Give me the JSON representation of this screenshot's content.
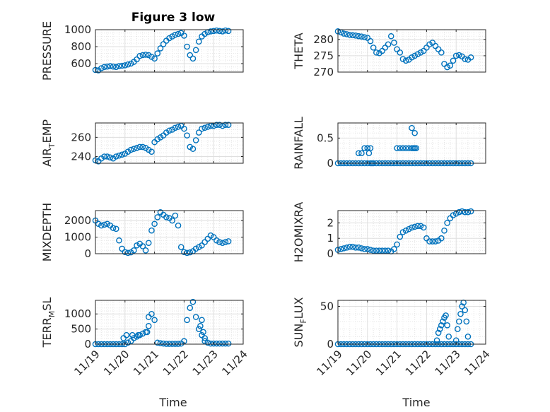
{
  "figure_title": "Figure 3 low",
  "colors": {
    "marker": "#0072BD",
    "axis": "#262626",
    "grid": "#dfdfdf"
  },
  "chart_data": [
    {
      "type": "scatter",
      "ylabel": "PRESSURE",
      "ylim": [
        500,
        1000
      ],
      "yticks": [
        600,
        800,
        1000
      ],
      "xlim": [
        0,
        5
      ],
      "xticks": [
        "11/19",
        "11/20",
        "11/21",
        "11/22",
        "11/23",
        "11/24"
      ],
      "x": [
        0.0,
        0.1,
        0.2,
        0.3,
        0.4,
        0.5,
        0.6,
        0.7,
        0.8,
        0.9,
        1.0,
        1.1,
        1.2,
        1.3,
        1.4,
        1.5,
        1.6,
        1.7,
        1.8,
        1.9,
        2.0,
        2.1,
        2.2,
        2.3,
        2.4,
        2.5,
        2.6,
        2.7,
        2.8,
        2.9,
        3.0,
        3.1,
        3.2,
        3.3,
        3.4,
        3.5,
        3.6,
        3.7,
        3.8,
        3.9,
        4.0,
        4.1,
        4.2,
        4.3,
        4.4,
        4.5
      ],
      "y": [
        525,
        520,
        545,
        560,
        565,
        570,
        565,
        560,
        570,
        575,
        580,
        590,
        600,
        620,
        650,
        690,
        700,
        705,
        700,
        680,
        660,
        720,
        780,
        830,
        870,
        900,
        920,
        940,
        950,
        960,
        930,
        800,
        700,
        660,
        760,
        860,
        920,
        950,
        970,
        980,
        985,
        990,
        985,
        980,
        990,
        985
      ]
    },
    {
      "type": "scatter",
      "ylabel": "THETA",
      "ylim": [
        270,
        283
      ],
      "yticks": [
        270,
        275,
        280
      ],
      "xlim": [
        0,
        5
      ],
      "xticks": [
        "11/19",
        "11/20",
        "11/21",
        "11/22",
        "11/23",
        "11/24"
      ],
      "x": [
        0.0,
        0.1,
        0.2,
        0.3,
        0.4,
        0.5,
        0.6,
        0.7,
        0.8,
        0.9,
        1.0,
        1.1,
        1.2,
        1.3,
        1.4,
        1.5,
        1.6,
        1.7,
        1.8,
        1.9,
        2.0,
        2.1,
        2.2,
        2.3,
        2.4,
        2.5,
        2.6,
        2.7,
        2.8,
        2.9,
        3.0,
        3.1,
        3.2,
        3.3,
        3.4,
        3.5,
        3.6,
        3.7,
        3.8,
        3.9,
        4.0,
        4.1,
        4.2,
        4.3,
        4.4,
        4.5
      ],
      "y": [
        282.5,
        282.2,
        281.8,
        281.6,
        281.4,
        281.3,
        281.2,
        281.0,
        280.9,
        280.7,
        280.5,
        279.5,
        277.5,
        276.0,
        275.8,
        276.5,
        277.5,
        278.5,
        281.0,
        279.0,
        277.0,
        276.0,
        274.0,
        273.5,
        273.8,
        274.5,
        275.0,
        275.5,
        276.0,
        276.5,
        277.5,
        278.5,
        279.0,
        278.0,
        277.0,
        276.0,
        272.5,
        271.5,
        272.0,
        273.5,
        275.0,
        275.2,
        274.8,
        274.0,
        273.8,
        274.5
      ]
    },
    {
      "type": "scatter",
      "ylabel": "AIR_TEMP",
      "ylim": [
        233,
        275
      ],
      "yticks": [
        240,
        260
      ],
      "xlim": [
        0,
        5
      ],
      "xticks": [
        "11/19",
        "11/20",
        "11/21",
        "11/22",
        "11/23",
        "11/24"
      ],
      "x": [
        0.0,
        0.1,
        0.2,
        0.3,
        0.4,
        0.5,
        0.6,
        0.7,
        0.8,
        0.9,
        1.0,
        1.1,
        1.2,
        1.3,
        1.4,
        1.5,
        1.6,
        1.7,
        1.8,
        1.9,
        2.0,
        2.1,
        2.2,
        2.3,
        2.4,
        2.5,
        2.6,
        2.7,
        2.8,
        2.9,
        3.0,
        3.1,
        3.2,
        3.3,
        3.4,
        3.5,
        3.6,
        3.7,
        3.8,
        3.9,
        4.0,
        4.1,
        4.2,
        4.3,
        4.4,
        4.5
      ],
      "y": [
        236,
        235,
        238,
        240,
        240,
        239,
        238,
        240,
        241,
        242,
        243,
        245,
        247,
        248,
        249,
        250,
        250,
        249,
        247,
        245,
        255,
        258,
        260,
        262,
        265,
        267,
        268,
        270,
        271,
        272,
        269,
        262,
        250,
        248,
        257,
        265,
        269,
        270,
        271,
        272,
        272,
        273,
        273,
        272,
        273,
        273
      ]
    },
    {
      "type": "scatter",
      "ylabel": "RAINFALL",
      "ylim": [
        0,
        0.8
      ],
      "yticks": [
        0,
        0.5
      ],
      "xlim": [
        0,
        5
      ],
      "xticks": [
        "11/19",
        "11/20",
        "11/21",
        "11/22",
        "11/23",
        "11/24"
      ],
      "x": [
        0.0,
        0.1,
        0.2,
        0.3,
        0.4,
        0.5,
        0.6,
        0.7,
        0.8,
        0.9,
        1.0,
        1.1,
        1.2,
        1.3,
        1.4,
        1.5,
        1.6,
        1.7,
        1.8,
        1.9,
        2.0,
        2.1,
        2.2,
        2.3,
        2.4,
        2.5,
        2.6,
        2.7,
        2.8,
        2.9,
        3.0,
        3.1,
        3.2,
        3.3,
        3.4,
        3.5,
        3.6,
        3.7,
        3.8,
        3.9,
        4.0,
        4.1,
        4.2,
        4.3,
        4.4,
        4.5,
        0.7,
        0.8,
        0.9,
        1.0,
        1.05,
        1.1,
        1.15,
        1.0,
        2.0,
        2.1,
        2.2,
        2.3,
        2.4,
        2.5,
        2.55,
        2.6,
        2.65,
        2.5,
        2.6
      ],
      "y": [
        0,
        0,
        0,
        0,
        0,
        0,
        0,
        0,
        0,
        0,
        0,
        0,
        0,
        0,
        0,
        0,
        0,
        0,
        0,
        0,
        0,
        0,
        0,
        0,
        0,
        0,
        0,
        0,
        0,
        0,
        0,
        0,
        0,
        0,
        0,
        0,
        0,
        0,
        0,
        0,
        0,
        0,
        0,
        0,
        0,
        0,
        0.2,
        0.2,
        0.3,
        0.3,
        0.2,
        0.3,
        0,
        0.3,
        0.3,
        0.3,
        0.3,
        0.3,
        0.3,
        0.3,
        0.3,
        0.3,
        0.3,
        0.7,
        0.6
      ]
    },
    {
      "type": "scatter",
      "ylabel": "MIXDEPTH",
      "ylim": [
        0,
        2600
      ],
      "yticks": [
        0,
        1000,
        2000
      ],
      "xlim": [
        0,
        5
      ],
      "xticks": [
        "11/19",
        "11/20",
        "11/21",
        "11/22",
        "11/23",
        "11/24"
      ],
      "x": [
        0.0,
        0.1,
        0.2,
        0.3,
        0.4,
        0.5,
        0.6,
        0.7,
        0.8,
        0.9,
        1.0,
        1.1,
        1.2,
        1.3,
        1.4,
        1.5,
        1.6,
        1.7,
        1.8,
        1.9,
        2.0,
        2.1,
        2.2,
        2.3,
        2.4,
        2.5,
        2.6,
        2.7,
        2.8,
        2.9,
        3.0,
        3.1,
        3.2,
        3.3,
        3.4,
        3.5,
        3.6,
        3.7,
        3.8,
        3.9,
        4.0,
        4.1,
        4.2,
        4.3,
        4.4,
        4.5
      ],
      "y": [
        2000,
        1800,
        1700,
        1750,
        1800,
        1700,
        1550,
        1500,
        800,
        300,
        100,
        50,
        80,
        200,
        500,
        600,
        450,
        200,
        650,
        1400,
        1800,
        2200,
        2500,
        2350,
        2200,
        2150,
        2000,
        2300,
        1700,
        400,
        100,
        50,
        80,
        150,
        300,
        400,
        500,
        700,
        900,
        1100,
        1000,
        800,
        700,
        650,
        700,
        750
      ]
    },
    {
      "type": "scatter",
      "ylabel": "H2OMIXRA",
      "ylim": [
        0,
        2.8
      ],
      "yticks": [
        0,
        1,
        2
      ],
      "xlim": [
        0,
        5
      ],
      "xticks": [
        "11/19",
        "11/20",
        "11/21",
        "11/22",
        "11/23",
        "11/24"
      ],
      "x": [
        0.0,
        0.1,
        0.2,
        0.3,
        0.4,
        0.5,
        0.6,
        0.7,
        0.8,
        0.9,
        1.0,
        1.1,
        1.2,
        1.3,
        1.4,
        1.5,
        1.6,
        1.7,
        1.8,
        1.9,
        2.0,
        2.1,
        2.2,
        2.3,
        2.4,
        2.5,
        2.6,
        2.7,
        2.8,
        2.9,
        3.0,
        3.1,
        3.2,
        3.3,
        3.4,
        3.5,
        3.6,
        3.7,
        3.8,
        3.9,
        4.0,
        4.1,
        4.2,
        4.3,
        4.4,
        4.5
      ],
      "y": [
        0.25,
        0.3,
        0.35,
        0.4,
        0.45,
        0.45,
        0.4,
        0.4,
        0.35,
        0.3,
        0.3,
        0.25,
        0.2,
        0.2,
        0.2,
        0.2,
        0.2,
        0.2,
        0.15,
        0.3,
        0.6,
        1.1,
        1.4,
        1.5,
        1.6,
        1.7,
        1.75,
        1.8,
        1.8,
        1.7,
        1.0,
        0.8,
        0.8,
        0.8,
        0.85,
        1.0,
        1.5,
        2.0,
        2.3,
        2.5,
        2.6,
        2.7,
        2.75,
        2.7,
        2.7,
        2.75
      ]
    },
    {
      "type": "scatter",
      "ylabel": "TERR_MSL",
      "ylim": [
        0,
        1450
      ],
      "yticks": [
        0,
        500,
        1000
      ],
      "xlim": [
        0,
        5
      ],
      "xticks": [
        "11/19",
        "11/20",
        "11/21",
        "11/22",
        "11/23",
        "11/24"
      ],
      "x": [
        0.0,
        0.1,
        0.2,
        0.3,
        0.4,
        0.5,
        0.6,
        0.7,
        0.8,
        0.9,
        1.0,
        1.1,
        1.2,
        1.3,
        1.4,
        1.5,
        1.6,
        1.7,
        1.8,
        1.9,
        2.0,
        2.1,
        2.2,
        2.3,
        2.4,
        2.5,
        2.6,
        2.7,
        2.8,
        2.9,
        3.0,
        3.1,
        3.2,
        3.3,
        3.4,
        3.5,
        3.6,
        3.7,
        3.8,
        3.9,
        4.0,
        4.1,
        4.2,
        4.3,
        4.4,
        4.5,
        0.95,
        1.05,
        1.25,
        1.45,
        1.75,
        1.8,
        3.55,
        3.6,
        3.65,
        3.7
      ],
      "y": [
        0,
        0,
        0,
        0,
        0,
        0,
        0,
        0,
        0,
        0,
        0,
        50,
        100,
        200,
        250,
        300,
        350,
        400,
        600,
        1000,
        800,
        50,
        30,
        20,
        10,
        10,
        10,
        10,
        10,
        20,
        100,
        800,
        1200,
        1400,
        900,
        500,
        300,
        100,
        50,
        20,
        20,
        20,
        20,
        20,
        20,
        20,
        200,
        300,
        300,
        300,
        400,
        900,
        600,
        800,
        400,
        200
      ]
    },
    {
      "type": "scatter",
      "ylabel": "SUN_FLUX",
      "ylim": [
        0,
        58
      ],
      "yticks": [
        0,
        50
      ],
      "xlim": [
        0,
        5
      ],
      "xticks": [
        "11/19",
        "11/20",
        "11/21",
        "11/22",
        "11/23",
        "11/24"
      ],
      "x": [
        0.0,
        0.1,
        0.2,
        0.3,
        0.4,
        0.5,
        0.6,
        0.7,
        0.8,
        0.9,
        1.0,
        1.1,
        1.2,
        1.3,
        1.4,
        1.5,
        1.6,
        1.7,
        1.8,
        1.9,
        2.0,
        2.1,
        2.2,
        2.3,
        2.4,
        2.5,
        2.6,
        2.7,
        2.8,
        2.9,
        3.0,
        3.1,
        3.2,
        3.3,
        3.4,
        3.5,
        3.6,
        3.7,
        3.8,
        3.9,
        4.0,
        4.1,
        4.2,
        4.3,
        4.4,
        4.5,
        3.35,
        3.4,
        3.45,
        3.5,
        3.55,
        3.6,
        3.65,
        3.7,
        3.75,
        4.0,
        4.05,
        4.1,
        4.15,
        4.2,
        4.25,
        4.3,
        4.35,
        4.4
      ],
      "y": [
        0,
        0,
        0,
        0,
        0,
        0,
        0,
        0,
        0,
        0,
        0,
        0,
        0,
        0,
        0,
        0,
        0,
        0,
        0,
        0,
        0,
        0,
        0,
        0,
        0,
        0,
        0,
        0,
        0,
        0,
        0,
        0,
        0,
        0,
        0,
        0,
        0,
        0,
        0,
        0,
        0,
        0,
        0,
        0,
        0,
        0,
        5,
        15,
        20,
        25,
        30,
        35,
        38,
        25,
        10,
        5,
        20,
        30,
        40,
        50,
        55,
        45,
        30,
        10
      ]
    }
  ],
  "xlabels": [
    "Time",
    "Time"
  ]
}
